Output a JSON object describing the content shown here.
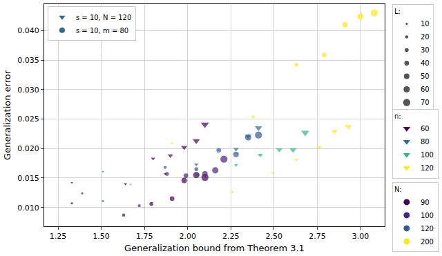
{
  "chart_data": {
    "type": "scatter",
    "xlabel": "Generalization bound from Theorem 3.1",
    "ylabel": "Generalization error",
    "xlim": [
      1.17,
      3.14
    ],
    "ylim": [
      0.0068,
      0.0445
    ],
    "xticks": [
      {
        "value": 1.25,
        "label": "1.25"
      },
      {
        "value": 1.5,
        "label": "1.50"
      },
      {
        "value": 1.75,
        "label": "1.75"
      },
      {
        "value": 2,
        "label": "2.00"
      },
      {
        "value": 2.25,
        "label": "2.25"
      },
      {
        "value": 2.5,
        "label": "2.50"
      },
      {
        "value": 2.75,
        "label": "2.75"
      },
      {
        "value": 3,
        "label": "3.00"
      }
    ],
    "yticks": [
      {
        "value": 0.01,
        "label": "0.010"
      },
      0.015,
      {
        "value": 0.02,
        "label": "0.020"
      },
      0.025,
      {
        "value": 0.03,
        "label": "0.030"
      },
      0.035,
      {
        "value": 0.04,
        "label": "0.040"
      }
    ],
    "grid": true,
    "series": [
      {
        "marker": "triangle-down",
        "color": "#440154",
        "x": [
          1.33,
          1.64,
          1.8,
          1.9,
          1.98,
          2.05,
          2.1
        ],
        "y": [
          0.0142,
          0.014,
          0.0183,
          0.0188,
          0.0202,
          0.0213,
          0.0241
        ],
        "L": [
          10,
          20,
          30,
          40,
          50,
          60,
          70
        ]
      },
      {
        "marker": "triangle-down",
        "color": "#31688e",
        "x": [
          1.51,
          1.87,
          2.05,
          2.28,
          2.35,
          2.41
        ],
        "y": [
          0.0161,
          0.0157,
          0.0173,
          0.0199,
          0.0221,
          0.0235
        ],
        "L": [
          10,
          20,
          30,
          40,
          50,
          60
        ]
      },
      {
        "marker": "triangle-down",
        "color": "#35b779",
        "x": [
          1.67,
          2.06,
          2.28,
          2.42,
          2.53,
          2.61,
          2.68
        ],
        "y": [
          0.0139,
          0.0156,
          0.0172,
          0.0189,
          0.0198,
          0.0198,
          0.0227
        ],
        "L": [
          10,
          20,
          30,
          40,
          50,
          60,
          70
        ]
      },
      {
        "marker": "triangle-down",
        "color": "#fde725",
        "x": [
          1.8,
          2.49,
          2.63,
          2.76,
          2.85,
          2.93
        ],
        "y": [
          0.0109,
          0.0159,
          0.0181,
          0.0202,
          0.0229,
          0.0237
        ],
        "L": [
          10,
          20,
          30,
          40,
          50,
          60
        ]
      },
      {
        "marker": "circle",
        "color": "#440154",
        "x": [
          1.33,
          1.63,
          1.79,
          1.91,
          1.98,
          2.05,
          2.1
        ],
        "y": [
          0.0107,
          0.0087,
          0.0106,
          0.0115,
          0.0146,
          0.0155,
          0.0151
        ],
        "L": [
          10,
          20,
          30,
          40,
          50,
          60,
          70
        ]
      },
      {
        "marker": "circle",
        "color": "#482878",
        "x": [
          1.39,
          1.72,
          1.88,
          1.99,
          2.1,
          2.16,
          2.21
        ],
        "y": [
          0.0124,
          0.0103,
          0.0157,
          0.0154,
          0.0157,
          0.0163,
          0.0182
        ],
        "L": [
          10,
          20,
          30,
          40,
          50,
          60,
          70
        ]
      },
      {
        "marker": "circle",
        "color": "#365c8d",
        "x": [
          1.51,
          1.87,
          2.05,
          2.18,
          2.28,
          2.35,
          2.41
        ],
        "y": [
          0.0111,
          0.0168,
          0.0165,
          0.0197,
          0.019,
          0.0219,
          0.0223
        ],
        "L": [
          10,
          20,
          30,
          40,
          50,
          60,
          70
        ]
      },
      {
        "marker": "circle",
        "color": "#fde725",
        "x": [
          1.91,
          2.26,
          2.38,
          2.63,
          2.79,
          2.91,
          3.0,
          3.08
        ],
        "y": [
          0.0209,
          0.0126,
          0.0254,
          0.0342,
          0.0359,
          0.041,
          0.0424,
          0.043
        ],
        "L": [
          10,
          10,
          20,
          30,
          40,
          50,
          60,
          70
        ]
      }
    ],
    "marker_legend": [
      {
        "label": "s = 10, N = 120",
        "marker": "triangle-down",
        "color": "#31688e"
      },
      {
        "label": "s = 10, m = 80",
        "marker": "circle",
        "color": "#31688e"
      }
    ],
    "size_legend": {
      "title": "L:",
      "marker": "circle",
      "color": "#555555",
      "values": [
        10,
        20,
        30,
        40,
        50,
        60,
        70
      ]
    },
    "color_legends": [
      {
        "title": "n:",
        "marker": "triangle-down",
        "entries": [
          {
            "label": 60,
            "color": "#440154"
          },
          {
            "label": 80,
            "color": "#31688e"
          },
          {
            "label": 100,
            "color": "#35b779"
          },
          {
            "label": 120,
            "color": "#fde725"
          }
        ]
      },
      {
        "title": "N:",
        "marker": "circle",
        "entries": [
          {
            "label": 90,
            "color": "#440154"
          },
          {
            "label": 100,
            "color": "#482878"
          },
          {
            "label": 120,
            "color": "#365c8d"
          },
          {
            "label": 200,
            "color": "#fde725"
          }
        ]
      }
    ]
  }
}
